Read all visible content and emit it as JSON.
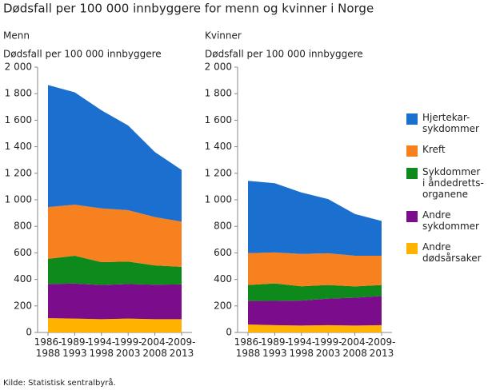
{
  "title": "Dødsfall per 100 000 innbyggere for menn og kvinner i Norge",
  "source": "Kilde: Statistisk sentralbyrå.",
  "chart_data": [
    {
      "type": "stacked-area",
      "subtitle": "Menn",
      "y_label": "Dødsfall per 100 000 innbyggere",
      "categories": [
        "1986-1988",
        "1989-1993",
        "1994-1998",
        "1999-2003",
        "2004-2008",
        "2009-2013"
      ],
      "ylim": [
        0,
        2000
      ],
      "yticks": [
        0,
        200,
        400,
        600,
        800,
        {
          "value": 1000,
          "label": "1 000"
        },
        {
          "value": 1200,
          "label": "1 200"
        },
        {
          "value": 1400,
          "label": "1 400"
        },
        {
          "value": 1600,
          "label": "1 600"
        },
        {
          "value": 1800,
          "label": "1 800"
        },
        {
          "value": 2000,
          "label": "2 000"
        }
      ],
      "series": [
        {
          "name": "Andre dødsårsaker",
          "color": "#ffb300",
          "values": [
            108,
            105,
            100,
            105,
            100,
            100
          ]
        },
        {
          "name": "Andre sykdommer",
          "color": "#7b0c8c",
          "values": [
            257,
            263,
            258,
            260,
            260,
            262
          ]
        },
        {
          "name": "Sykdommer i åndedretts-organene",
          "color": "#0e8a1d",
          "values": [
            190,
            210,
            172,
            170,
            145,
            133
          ]
        },
        {
          "name": "Kreft",
          "color": "#f7801f",
          "values": [
            390,
            385,
            405,
            387,
            365,
            340
          ]
        },
        {
          "name": "Hjertekar-sykdommer",
          "color": "#1b6fce",
          "values": [
            920,
            847,
            740,
            638,
            490,
            390
          ]
        }
      ]
    },
    {
      "type": "stacked-area",
      "subtitle": "Kvinner",
      "y_label": "Dødsfall per 100 000 innbyggere",
      "categories": [
        "1986-1988",
        "1989-1993",
        "1994-1998",
        "1999-2003",
        "2004-2008",
        "2009-2013"
      ],
      "ylim": [
        0,
        2000
      ],
      "yticks": [
        0,
        200,
        400,
        600,
        800,
        {
          "value": 1000,
          "label": "1 000"
        },
        {
          "value": 1200,
          "label": "1 200"
        },
        {
          "value": 1400,
          "label": "1 400"
        },
        {
          "value": 1600,
          "label": "1 600"
        },
        {
          "value": 1800,
          "label": "1 800"
        },
        {
          "value": 2000,
          "label": "2 000"
        }
      ],
      "series": [
        {
          "name": "Andre dødsårsaker",
          "color": "#ffb300",
          "values": [
            60,
            55,
            52,
            55,
            52,
            55
          ]
        },
        {
          "name": "Andre sykdommer",
          "color": "#7b0c8c",
          "values": [
            177,
            183,
            188,
            200,
            210,
            220
          ]
        },
        {
          "name": "Sykdommer i åndedretts-organene",
          "color": "#0e8a1d",
          "values": [
            121,
            132,
            108,
            103,
            85,
            83
          ]
        },
        {
          "name": "Kreft",
          "color": "#f7801f",
          "values": [
            240,
            233,
            244,
            239,
            231,
            220
          ]
        },
        {
          "name": "Hjertekar-sykdommer",
          "color": "#1b6fce",
          "values": [
            545,
            522,
            463,
            408,
            315,
            262
          ]
        }
      ]
    }
  ]
}
